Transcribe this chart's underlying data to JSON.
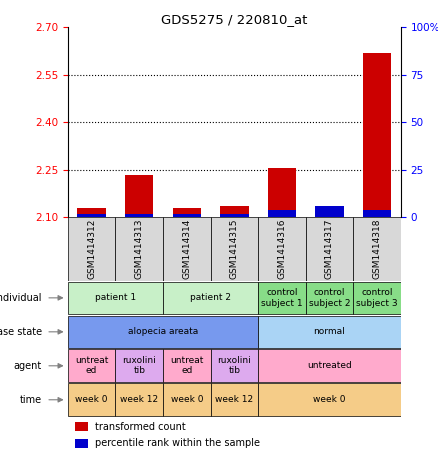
{
  "title": "GDS5275 / 220810_at",
  "samples": [
    "GSM1414312",
    "GSM1414313",
    "GSM1414314",
    "GSM1414315",
    "GSM1414316",
    "GSM1414317",
    "GSM1414318"
  ],
  "red_values": [
    2.13,
    2.235,
    2.13,
    2.135,
    2.255,
    2.1,
    2.62
  ],
  "blue_values": [
    2,
    2,
    2,
    2,
    4,
    6,
    4
  ],
  "y_min": 2.1,
  "y_max": 2.7,
  "y_ticks": [
    2.1,
    2.25,
    2.4,
    2.55,
    2.7
  ],
  "y2_ticks": [
    0,
    25,
    50,
    75,
    100
  ],
  "y2_labels": [
    "0",
    "25",
    "50",
    "75",
    "100%"
  ],
  "dotted_lines": [
    2.25,
    2.4,
    2.55
  ],
  "individual_groups": [
    {
      "label": "patient 1",
      "cols": [
        0,
        1
      ],
      "color": "#c8f0c8"
    },
    {
      "label": "patient 2",
      "cols": [
        2,
        3
      ],
      "color": "#c8f0c8"
    },
    {
      "label": "control\nsubject 1",
      "cols": [
        4
      ],
      "color": "#88dd88"
    },
    {
      "label": "control\nsubject 2",
      "cols": [
        5
      ],
      "color": "#88dd88"
    },
    {
      "label": "control\nsubject 3",
      "cols": [
        6
      ],
      "color": "#88dd88"
    }
  ],
  "disease_groups": [
    {
      "label": "alopecia areata",
      "cols": [
        0,
        1,
        2,
        3
      ],
      "color": "#7799ee"
    },
    {
      "label": "normal",
      "cols": [
        4,
        5,
        6
      ],
      "color": "#aad4f5"
    }
  ],
  "agent_groups": [
    {
      "label": "untreat\ned",
      "cols": [
        0
      ],
      "color": "#ffaacc"
    },
    {
      "label": "ruxolini\ntib",
      "cols": [
        1
      ],
      "color": "#ddaaee"
    },
    {
      "label": "untreat\ned",
      "cols": [
        2
      ],
      "color": "#ffaacc"
    },
    {
      "label": "ruxolini\ntib",
      "cols": [
        3
      ],
      "color": "#ddaaee"
    },
    {
      "label": "untreated",
      "cols": [
        4,
        5,
        6
      ],
      "color": "#ffaacc"
    }
  ],
  "time_groups": [
    {
      "label": "week 0",
      "cols": [
        0
      ],
      "color": "#f5cc88"
    },
    {
      "label": "week 12",
      "cols": [
        1
      ],
      "color": "#f5cc88"
    },
    {
      "label": "week 0",
      "cols": [
        2
      ],
      "color": "#f5cc88"
    },
    {
      "label": "week 12",
      "cols": [
        3
      ],
      "color": "#f5cc88"
    },
    {
      "label": "week 0",
      "cols": [
        4,
        5,
        6
      ],
      "color": "#f5cc88"
    }
  ],
  "row_labels": [
    "individual",
    "disease state",
    "agent",
    "time"
  ],
  "legend_red": "transformed count",
  "legend_blue": "percentile rank within the sample",
  "bar_color": "#cc0000",
  "blue_color": "#0000cc",
  "sample_box_color": "#d8d8d8"
}
